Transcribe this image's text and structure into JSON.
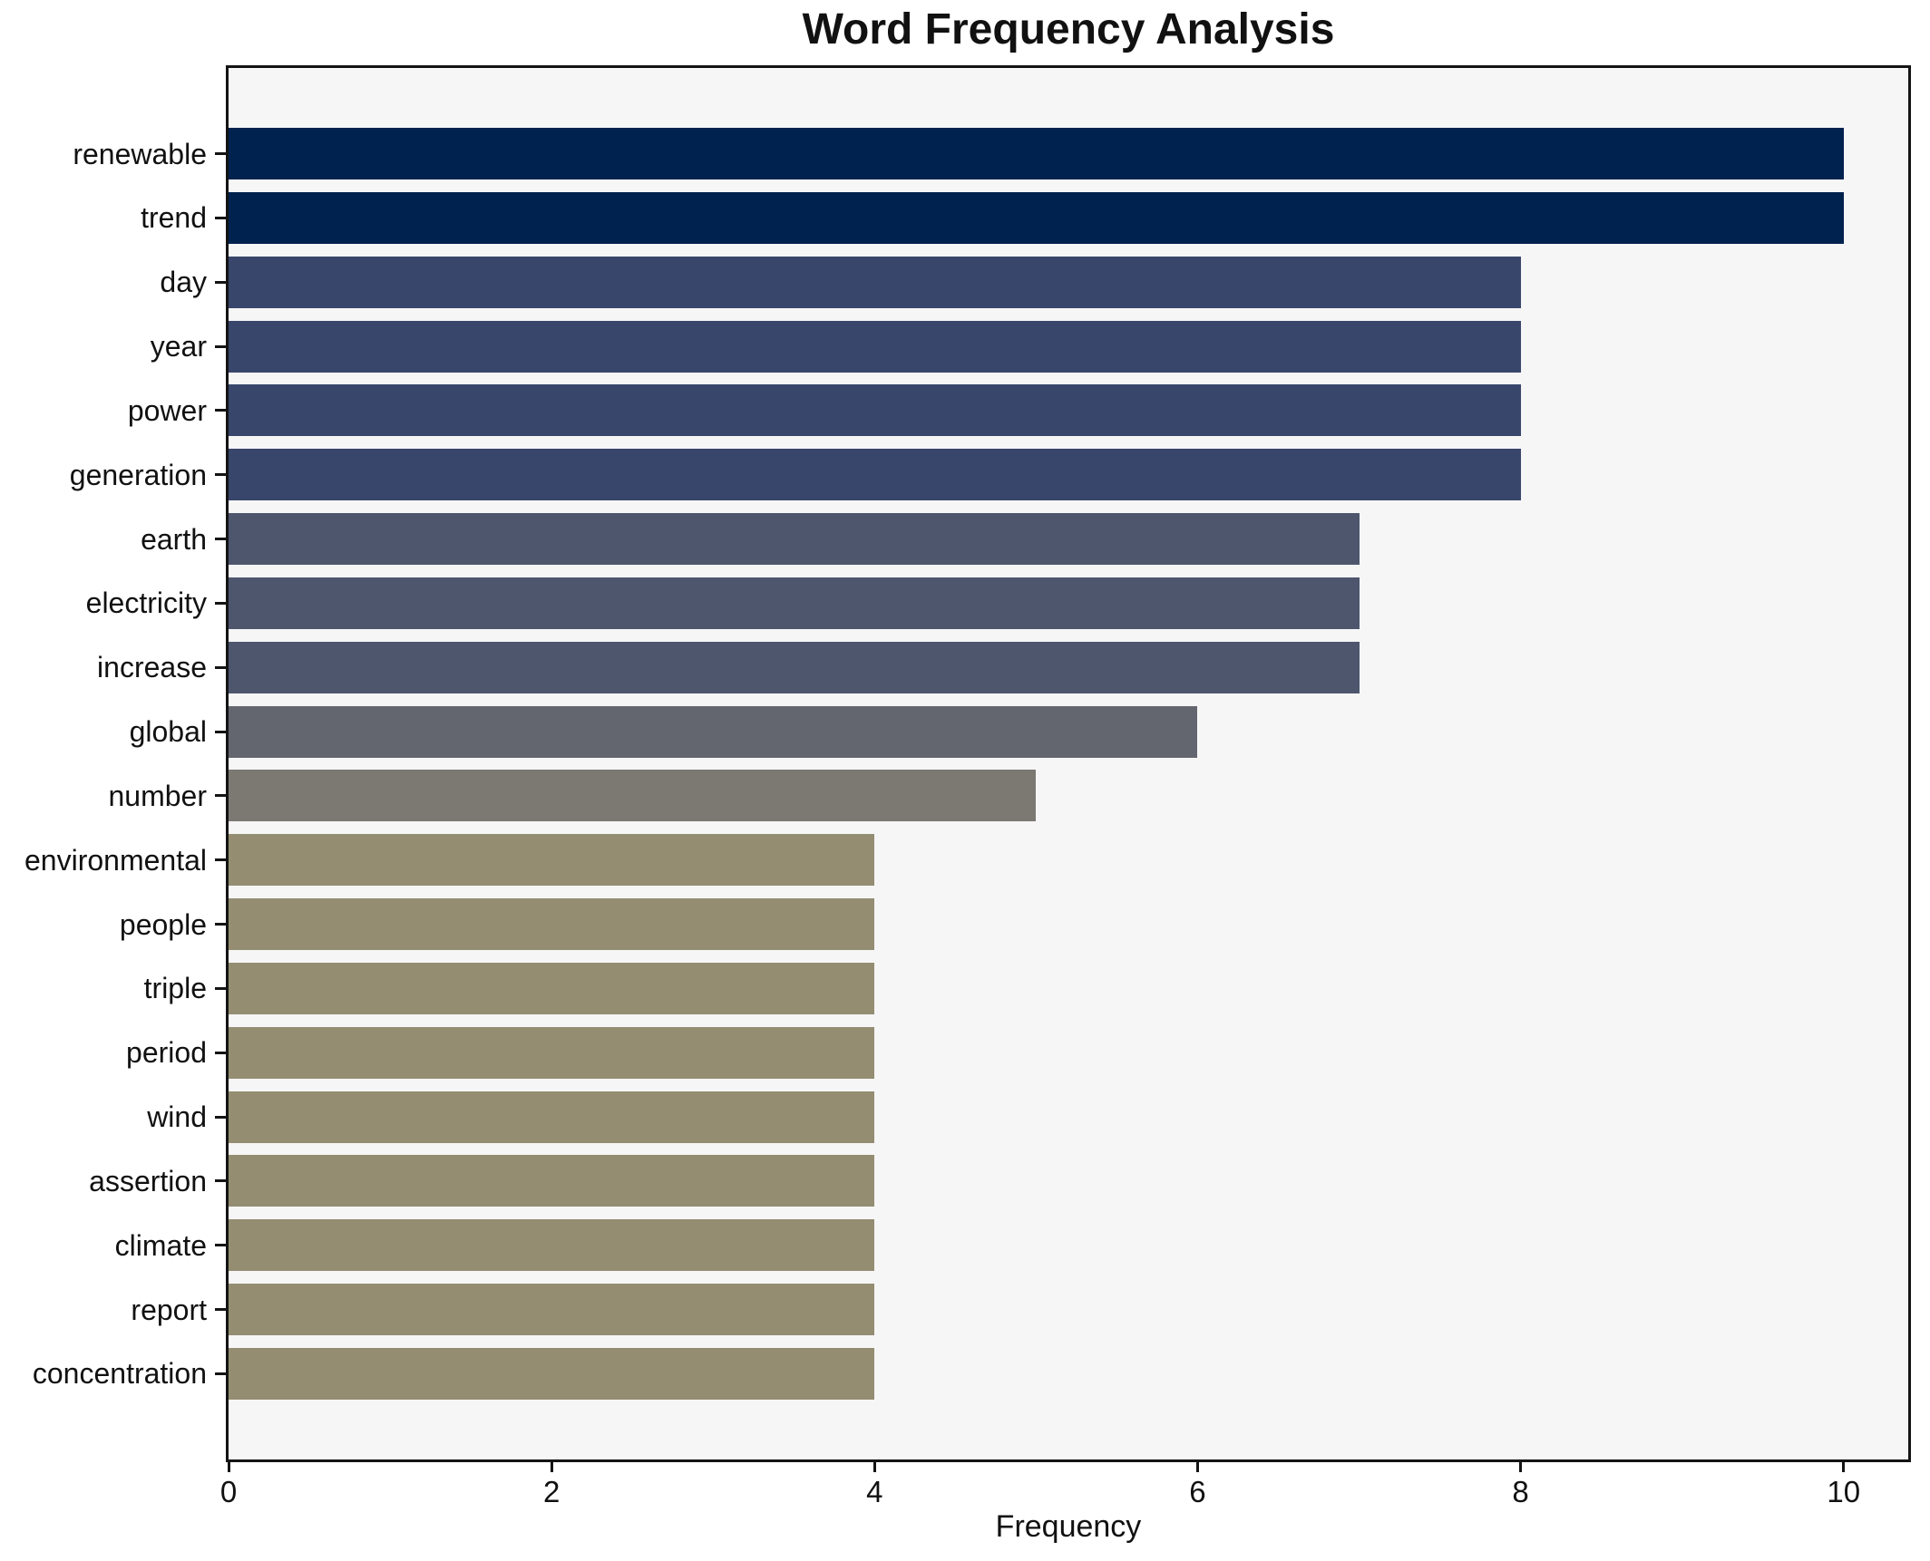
{
  "chart": {
    "title": "Word Frequency Analysis",
    "xlabel": "Frequency"
  },
  "chart_data": {
    "type": "bar",
    "orientation": "horizontal",
    "title": "Word Frequency Analysis",
    "xlabel": "Frequency",
    "ylabel": "",
    "grid": false,
    "xlim": [
      0,
      10.4
    ],
    "x_ticks": [
      0,
      2,
      4,
      6,
      8,
      10
    ],
    "categories": [
      "renewable",
      "trend",
      "day",
      "year",
      "power",
      "generation",
      "earth",
      "electricity",
      "increase",
      "global",
      "number",
      "environmental",
      "people",
      "triple",
      "period",
      "wind",
      "assertion",
      "climate",
      "report",
      "concentration"
    ],
    "values": [
      10,
      10,
      8,
      8,
      8,
      8,
      7,
      7,
      7,
      6,
      5,
      4,
      4,
      4,
      4,
      4,
      4,
      4,
      4,
      4
    ],
    "bar_colors": [
      "#00224E",
      "#00224E",
      "#39466B",
      "#39466B",
      "#39466B",
      "#39466B",
      "#4D566D",
      "#4D566D",
      "#4D566D",
      "#63666F",
      "#7B7972",
      "#948D71",
      "#948D71",
      "#948D71",
      "#948D71",
      "#948D71",
      "#948D71",
      "#948D71",
      "#948D71",
      "#948D71"
    ]
  },
  "colors": {
    "figure_bg": "#FFFFFF",
    "plot_bg": "#F6F6F7",
    "spine": "#141414",
    "text": "#111111"
  }
}
